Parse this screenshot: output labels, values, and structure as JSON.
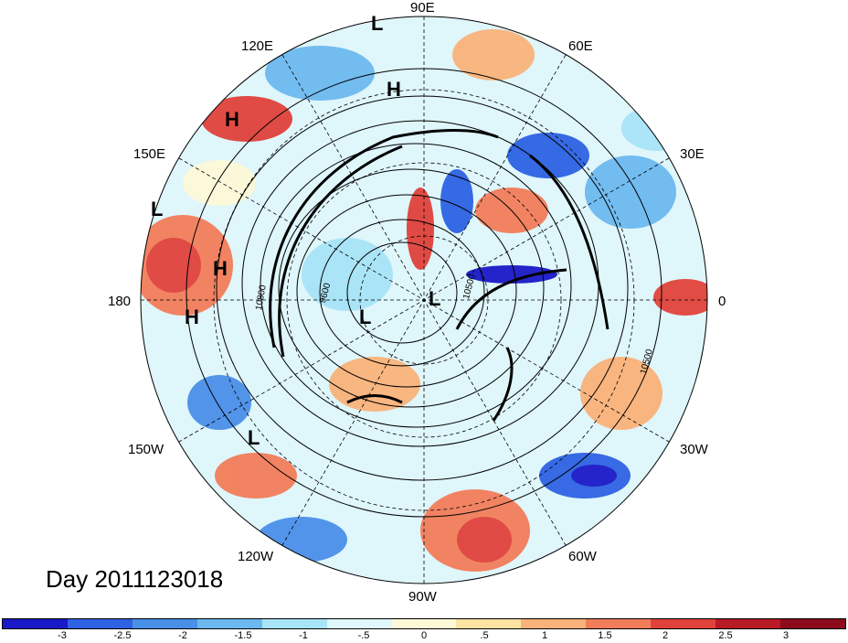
{
  "title": "Day 2011123018",
  "longitude_labels": [
    "90E",
    "60E",
    "30E",
    "0",
    "30W",
    "60W",
    "90W",
    "120W",
    "150W",
    "180",
    "150E",
    "120E"
  ],
  "pressure_labels": [
    "H",
    "H",
    "L",
    "L",
    "H",
    "H",
    "L",
    "L",
    "L",
    "L"
  ],
  "contour_labels": [
    "9600",
    "10500",
    "10500",
    "10800"
  ],
  "colorbar": {
    "colors": [
      "#1a19c8",
      "#2e62e3",
      "#4a8fe8",
      "#6cb9f0",
      "#a8e4f7",
      "#dff6fb",
      "#fdf8d8",
      "#fde3a2",
      "#f9b27a",
      "#f27d5a",
      "#e0423b",
      "#b71b25",
      "#8b0a1b"
    ],
    "ticks": [
      "-3",
      "-2.5",
      "-2",
      "-1.5",
      "-1",
      "-.5",
      "0",
      ".5",
      "1",
      "1.5",
      "2",
      "2.5",
      "3"
    ]
  }
}
